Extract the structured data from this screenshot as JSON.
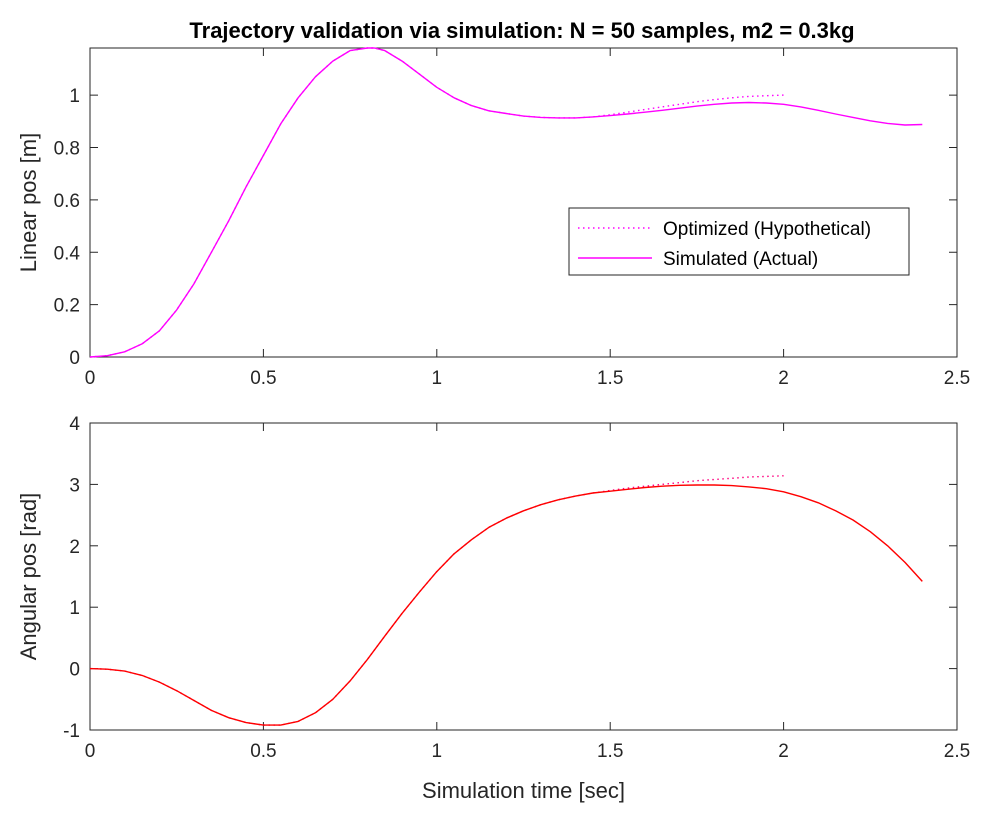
{
  "figure": {
    "title": "Trajectory validation via simulation: N = 50 samples, m2 = 0.3kg"
  },
  "chart_data": [
    {
      "type": "line",
      "ylabel": "Linear pos [m]",
      "xlabel": "",
      "xlim": [
        0,
        2.5
      ],
      "ylim": [
        0,
        1.18
      ],
      "xticks": [
        0,
        0.5,
        1,
        1.5,
        2,
        2.5
      ],
      "xtick_labels": [
        "0",
        "0.5",
        "1",
        "1.5",
        "2",
        "2.5"
      ],
      "yticks": [
        0,
        0.2,
        0.4,
        0.6,
        0.8,
        1
      ],
      "ytick_labels": [
        "0",
        "0.2",
        "0.4",
        "0.6",
        "0.8",
        "1"
      ],
      "legend": {
        "location": "right",
        "entries": [
          "Optimized (Hypothetical)",
          "Simulated (Actual)"
        ]
      },
      "series": [
        {
          "name": "Optimized (Hypothetical)",
          "style": "dotted",
          "color": "#ff00ff",
          "x": [
            0,
            0.05,
            0.1,
            0.15,
            0.2,
            0.25,
            0.3,
            0.35,
            0.4,
            0.45,
            0.5,
            0.55,
            0.6,
            0.65,
            0.7,
            0.75,
            0.8,
            0.82,
            0.85,
            0.9,
            0.95,
            1.0,
            1.05,
            1.1,
            1.15,
            1.2,
            1.25,
            1.3,
            1.35,
            1.4,
            1.45,
            1.5,
            1.55,
            1.6,
            1.65,
            1.7,
            1.75,
            1.8,
            1.85,
            1.9,
            1.95,
            2.0
          ],
          "y": [
            0,
            0.005,
            0.02,
            0.05,
            0.1,
            0.18,
            0.28,
            0.4,
            0.52,
            0.65,
            0.77,
            0.89,
            0.99,
            1.07,
            1.13,
            1.17,
            1.18,
            1.18,
            1.17,
            1.13,
            1.08,
            1.03,
            0.99,
            0.96,
            0.94,
            0.93,
            0.92,
            0.915,
            0.913,
            0.913,
            0.917,
            0.925,
            0.935,
            0.945,
            0.955,
            0.965,
            0.975,
            0.983,
            0.99,
            0.995,
            0.998,
            1.0
          ]
        },
        {
          "name": "Simulated (Actual)",
          "style": "solid",
          "color": "#ff00ff",
          "x": [
            0,
            0.05,
            0.1,
            0.15,
            0.2,
            0.25,
            0.3,
            0.35,
            0.4,
            0.45,
            0.5,
            0.55,
            0.6,
            0.65,
            0.7,
            0.75,
            0.8,
            0.82,
            0.85,
            0.9,
            0.95,
            1.0,
            1.05,
            1.1,
            1.15,
            1.2,
            1.25,
            1.3,
            1.35,
            1.4,
            1.45,
            1.5,
            1.55,
            1.6,
            1.65,
            1.7,
            1.75,
            1.8,
            1.85,
            1.9,
            1.95,
            2.0,
            2.05,
            2.1,
            2.15,
            2.2,
            2.25,
            2.3,
            2.35,
            2.4
          ],
          "y": [
            0,
            0.005,
            0.02,
            0.05,
            0.1,
            0.18,
            0.28,
            0.4,
            0.52,
            0.65,
            0.77,
            0.89,
            0.99,
            1.07,
            1.13,
            1.17,
            1.18,
            1.18,
            1.17,
            1.13,
            1.08,
            1.03,
            0.99,
            0.96,
            0.94,
            0.93,
            0.92,
            0.915,
            0.913,
            0.913,
            0.917,
            0.922,
            0.928,
            0.935,
            0.942,
            0.95,
            0.958,
            0.965,
            0.97,
            0.972,
            0.97,
            0.965,
            0.955,
            0.942,
            0.928,
            0.915,
            0.902,
            0.892,
            0.886,
            0.888
          ]
        }
      ]
    },
    {
      "type": "line",
      "ylabel": "Angular pos [rad]",
      "xlabel": "Simulation time [sec]",
      "xlim": [
        0,
        2.5
      ],
      "ylim": [
        -1,
        4
      ],
      "xticks": [
        0,
        0.5,
        1,
        1.5,
        2,
        2.5
      ],
      "xtick_labels": [
        "0",
        "0.5",
        "1",
        "1.5",
        "2",
        "2.5"
      ],
      "yticks": [
        -1,
        0,
        1,
        2,
        3,
        4
      ],
      "ytick_labels": [
        "-1",
        "0",
        "1",
        "2",
        "3",
        "4"
      ],
      "series": [
        {
          "name": "Optimized (Hypothetical)",
          "style": "dotted",
          "color": "#ff0080",
          "x": [
            0,
            0.05,
            0.1,
            0.15,
            0.2,
            0.25,
            0.3,
            0.35,
            0.4,
            0.45,
            0.5,
            0.55,
            0.6,
            0.65,
            0.7,
            0.75,
            0.8,
            0.85,
            0.9,
            0.95,
            1.0,
            1.05,
            1.1,
            1.15,
            1.2,
            1.25,
            1.3,
            1.35,
            1.4,
            1.45,
            1.5,
            1.55,
            1.6,
            1.65,
            1.7,
            1.75,
            1.8,
            1.85,
            1.9,
            1.95,
            2.0
          ],
          "y": [
            0,
            -0.01,
            -0.04,
            -0.11,
            -0.22,
            -0.36,
            -0.52,
            -0.68,
            -0.8,
            -0.88,
            -0.92,
            -0.92,
            -0.86,
            -0.72,
            -0.5,
            -0.2,
            0.15,
            0.53,
            0.9,
            1.25,
            1.58,
            1.87,
            2.1,
            2.3,
            2.45,
            2.57,
            2.67,
            2.75,
            2.81,
            2.86,
            2.9,
            2.94,
            2.97,
            3.0,
            3.03,
            3.06,
            3.08,
            3.1,
            3.12,
            3.13,
            3.14
          ]
        },
        {
          "name": "Simulated (Actual)",
          "style": "solid",
          "color": "#ff0000",
          "x": [
            0,
            0.05,
            0.1,
            0.15,
            0.2,
            0.25,
            0.3,
            0.35,
            0.4,
            0.45,
            0.5,
            0.55,
            0.6,
            0.65,
            0.7,
            0.75,
            0.8,
            0.85,
            0.9,
            0.95,
            1.0,
            1.05,
            1.1,
            1.15,
            1.2,
            1.25,
            1.3,
            1.35,
            1.4,
            1.45,
            1.5,
            1.55,
            1.6,
            1.65,
            1.7,
            1.75,
            1.8,
            1.85,
            1.9,
            1.95,
            2.0,
            2.05,
            2.1,
            2.15,
            2.2,
            2.25,
            2.3,
            2.35,
            2.4
          ],
          "y": [
            0,
            -0.01,
            -0.04,
            -0.11,
            -0.22,
            -0.36,
            -0.52,
            -0.68,
            -0.8,
            -0.88,
            -0.92,
            -0.92,
            -0.86,
            -0.72,
            -0.5,
            -0.2,
            0.15,
            0.53,
            0.9,
            1.25,
            1.58,
            1.87,
            2.1,
            2.3,
            2.45,
            2.57,
            2.67,
            2.75,
            2.81,
            2.86,
            2.89,
            2.92,
            2.95,
            2.97,
            2.985,
            2.99,
            2.99,
            2.98,
            2.96,
            2.93,
            2.88,
            2.8,
            2.7,
            2.57,
            2.42,
            2.23,
            2.0,
            1.73,
            1.42
          ]
        }
      ]
    }
  ]
}
